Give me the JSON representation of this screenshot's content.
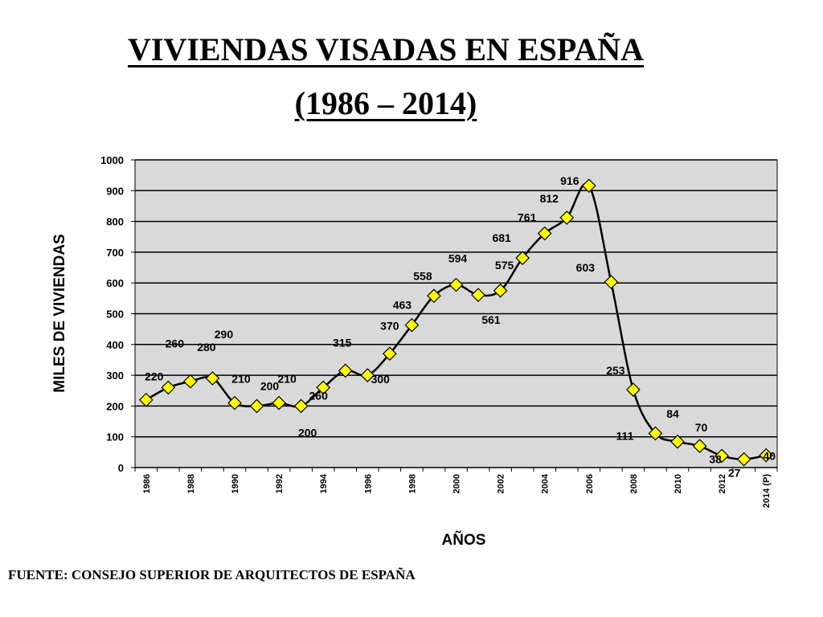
{
  "title": "VIVIENDAS VISADAS EN ESPAÑA",
  "subtitle": "(1986 – 2014)",
  "source": "FUENTE: CONSEJO SUPERIOR DE ARQUITECTOS DE ESPAÑA",
  "chart_data": {
    "type": "line",
    "xlabel": "AÑOS",
    "ylabel": "MILES DE VIVIENDAS",
    "ylim": [
      0,
      1000
    ],
    "yticks": [
      "0",
      "100",
      "200",
      "300",
      "400",
      "500",
      "600",
      "700",
      "800",
      "900",
      "1000"
    ],
    "x": [
      "1986",
      "1987",
      "1988",
      "1989",
      "1990",
      "1991",
      "1992",
      "1993",
      "1994",
      "1995",
      "1996",
      "1997",
      "1998",
      "1999",
      "2000",
      "2001",
      "2002",
      "2003",
      "2004",
      "2005",
      "2006",
      "2007",
      "2008",
      "2009",
      "2010",
      "2011",
      "2012",
      "2013",
      "2014 (P)"
    ],
    "xtick_labels": [
      "1986",
      "1988",
      "1990",
      "1992",
      "1994",
      "1996",
      "1998",
      "2000",
      "2002",
      "2004",
      "2006",
      "2008",
      "2010",
      "2012",
      "2014 (P)"
    ],
    "values": [
      220,
      260,
      280,
      290,
      210,
      200,
      210,
      200,
      260,
      315,
      300,
      370,
      463,
      558,
      594,
      561,
      575,
      681,
      761,
      812,
      916,
      603,
      253,
      111,
      84,
      70,
      38,
      27,
      40
    ],
    "data_labels": [
      "220",
      "260",
      "280",
      "290",
      "210",
      "200",
      "210",
      "200",
      "260",
      "315",
      "300",
      "370",
      "463",
      "558",
      "594",
      "561",
      "575",
      "681",
      "761",
      "812",
      "916",
      "603",
      "253",
      "111",
      "84",
      "70",
      "38",
      "27",
      "40"
    ],
    "grid": true,
    "plot_background": "#d9d9d9",
    "line_color": "#000000",
    "marker_color": "#ffff00",
    "marker": "diamond"
  }
}
